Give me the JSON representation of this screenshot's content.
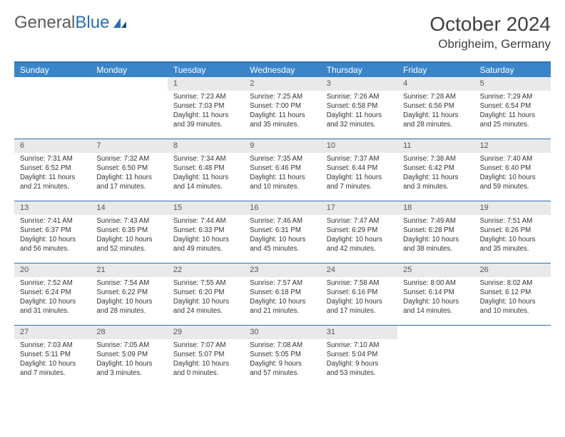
{
  "logo": {
    "text1": "General",
    "text2": "Blue"
  },
  "title": "October 2024",
  "location": "Obrigheim, Germany",
  "colors": {
    "header_bg": "#3a85c9",
    "border": "#2a6fb5",
    "daynum_bg": "#e9e9e9",
    "text": "#333333",
    "title_text": "#404040"
  },
  "day_names": [
    "Sunday",
    "Monday",
    "Tuesday",
    "Wednesday",
    "Thursday",
    "Friday",
    "Saturday"
  ],
  "weeks": [
    [
      {
        "empty": true
      },
      {
        "empty": true
      },
      {
        "day": "1",
        "sunrise": "Sunrise: 7:23 AM",
        "sunset": "Sunset: 7:03 PM",
        "daylight": "Daylight: 11 hours and 39 minutes."
      },
      {
        "day": "2",
        "sunrise": "Sunrise: 7:25 AM",
        "sunset": "Sunset: 7:00 PM",
        "daylight": "Daylight: 11 hours and 35 minutes."
      },
      {
        "day": "3",
        "sunrise": "Sunrise: 7:26 AM",
        "sunset": "Sunset: 6:58 PM",
        "daylight": "Daylight: 11 hours and 32 minutes."
      },
      {
        "day": "4",
        "sunrise": "Sunrise: 7:28 AM",
        "sunset": "Sunset: 6:56 PM",
        "daylight": "Daylight: 11 hours and 28 minutes."
      },
      {
        "day": "5",
        "sunrise": "Sunrise: 7:29 AM",
        "sunset": "Sunset: 6:54 PM",
        "daylight": "Daylight: 11 hours and 25 minutes."
      }
    ],
    [
      {
        "day": "6",
        "sunrise": "Sunrise: 7:31 AM",
        "sunset": "Sunset: 6:52 PM",
        "daylight": "Daylight: 11 hours and 21 minutes."
      },
      {
        "day": "7",
        "sunrise": "Sunrise: 7:32 AM",
        "sunset": "Sunset: 6:50 PM",
        "daylight": "Daylight: 11 hours and 17 minutes."
      },
      {
        "day": "8",
        "sunrise": "Sunrise: 7:34 AM",
        "sunset": "Sunset: 6:48 PM",
        "daylight": "Daylight: 11 hours and 14 minutes."
      },
      {
        "day": "9",
        "sunrise": "Sunrise: 7:35 AM",
        "sunset": "Sunset: 6:46 PM",
        "daylight": "Daylight: 11 hours and 10 minutes."
      },
      {
        "day": "10",
        "sunrise": "Sunrise: 7:37 AM",
        "sunset": "Sunset: 6:44 PM",
        "daylight": "Daylight: 11 hours and 7 minutes."
      },
      {
        "day": "11",
        "sunrise": "Sunrise: 7:38 AM",
        "sunset": "Sunset: 6:42 PM",
        "daylight": "Daylight: 11 hours and 3 minutes."
      },
      {
        "day": "12",
        "sunrise": "Sunrise: 7:40 AM",
        "sunset": "Sunset: 6:40 PM",
        "daylight": "Daylight: 10 hours and 59 minutes."
      }
    ],
    [
      {
        "day": "13",
        "sunrise": "Sunrise: 7:41 AM",
        "sunset": "Sunset: 6:37 PM",
        "daylight": "Daylight: 10 hours and 56 minutes."
      },
      {
        "day": "14",
        "sunrise": "Sunrise: 7:43 AM",
        "sunset": "Sunset: 6:35 PM",
        "daylight": "Daylight: 10 hours and 52 minutes."
      },
      {
        "day": "15",
        "sunrise": "Sunrise: 7:44 AM",
        "sunset": "Sunset: 6:33 PM",
        "daylight": "Daylight: 10 hours and 49 minutes."
      },
      {
        "day": "16",
        "sunrise": "Sunrise: 7:46 AM",
        "sunset": "Sunset: 6:31 PM",
        "daylight": "Daylight: 10 hours and 45 minutes."
      },
      {
        "day": "17",
        "sunrise": "Sunrise: 7:47 AM",
        "sunset": "Sunset: 6:29 PM",
        "daylight": "Daylight: 10 hours and 42 minutes."
      },
      {
        "day": "18",
        "sunrise": "Sunrise: 7:49 AM",
        "sunset": "Sunset: 6:28 PM",
        "daylight": "Daylight: 10 hours and 38 minutes."
      },
      {
        "day": "19",
        "sunrise": "Sunrise: 7:51 AM",
        "sunset": "Sunset: 6:26 PM",
        "daylight": "Daylight: 10 hours and 35 minutes."
      }
    ],
    [
      {
        "day": "20",
        "sunrise": "Sunrise: 7:52 AM",
        "sunset": "Sunset: 6:24 PM",
        "daylight": "Daylight: 10 hours and 31 minutes."
      },
      {
        "day": "21",
        "sunrise": "Sunrise: 7:54 AM",
        "sunset": "Sunset: 6:22 PM",
        "daylight": "Daylight: 10 hours and 28 minutes."
      },
      {
        "day": "22",
        "sunrise": "Sunrise: 7:55 AM",
        "sunset": "Sunset: 6:20 PM",
        "daylight": "Daylight: 10 hours and 24 minutes."
      },
      {
        "day": "23",
        "sunrise": "Sunrise: 7:57 AM",
        "sunset": "Sunset: 6:18 PM",
        "daylight": "Daylight: 10 hours and 21 minutes."
      },
      {
        "day": "24",
        "sunrise": "Sunrise: 7:58 AM",
        "sunset": "Sunset: 6:16 PM",
        "daylight": "Daylight: 10 hours and 17 minutes."
      },
      {
        "day": "25",
        "sunrise": "Sunrise: 8:00 AM",
        "sunset": "Sunset: 6:14 PM",
        "daylight": "Daylight: 10 hours and 14 minutes."
      },
      {
        "day": "26",
        "sunrise": "Sunrise: 8:02 AM",
        "sunset": "Sunset: 6:12 PM",
        "daylight": "Daylight: 10 hours and 10 minutes."
      }
    ],
    [
      {
        "day": "27",
        "sunrise": "Sunrise: 7:03 AM",
        "sunset": "Sunset: 5:11 PM",
        "daylight": "Daylight: 10 hours and 7 minutes."
      },
      {
        "day": "28",
        "sunrise": "Sunrise: 7:05 AM",
        "sunset": "Sunset: 5:09 PM",
        "daylight": "Daylight: 10 hours and 3 minutes."
      },
      {
        "day": "29",
        "sunrise": "Sunrise: 7:07 AM",
        "sunset": "Sunset: 5:07 PM",
        "daylight": "Daylight: 10 hours and 0 minutes."
      },
      {
        "day": "30",
        "sunrise": "Sunrise: 7:08 AM",
        "sunset": "Sunset: 5:05 PM",
        "daylight": "Daylight: 9 hours and 57 minutes."
      },
      {
        "day": "31",
        "sunrise": "Sunrise: 7:10 AM",
        "sunset": "Sunset: 5:04 PM",
        "daylight": "Daylight: 9 hours and 53 minutes."
      },
      {
        "empty": true
      },
      {
        "empty": true
      }
    ]
  ]
}
